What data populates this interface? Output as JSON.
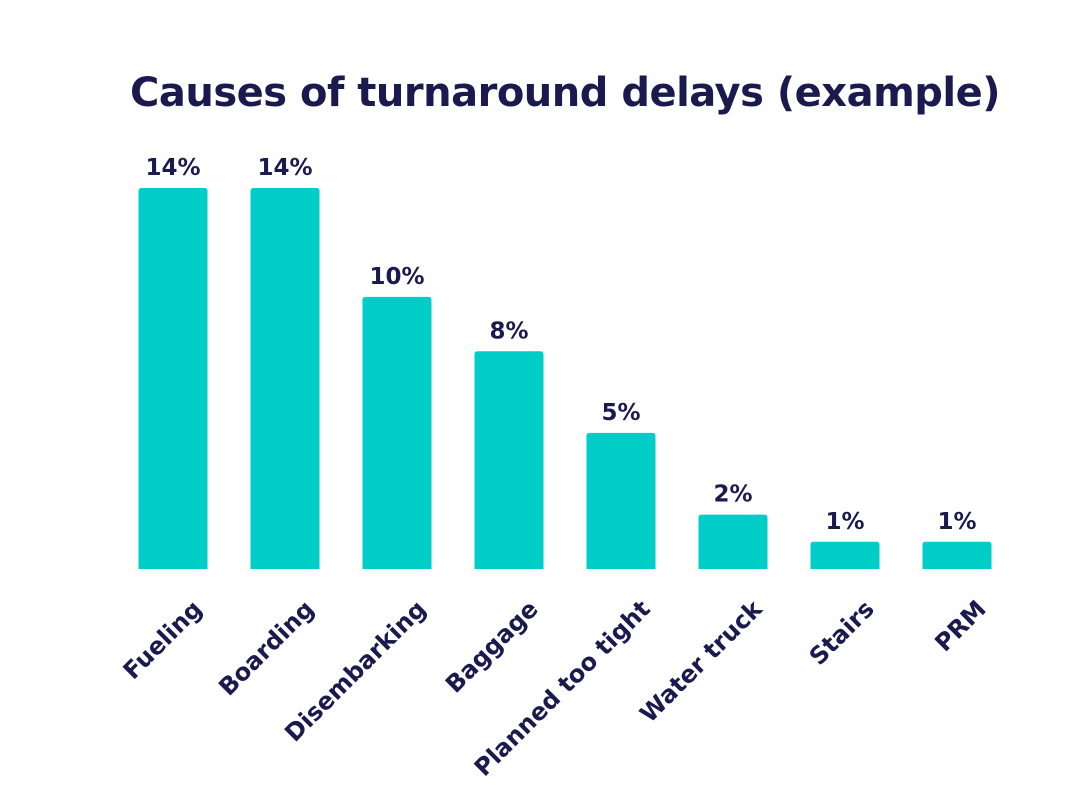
{
  "chart_data": {
    "type": "bar",
    "title": "Causes of turnaround delays (example)",
    "xlabel": "",
    "ylabel": "",
    "categories": [
      "Fueling",
      "Boarding",
      "Disembarking",
      "Baggage",
      "Planned too tight",
      "Water truck",
      "Stairs",
      "PRM"
    ],
    "values": [
      14,
      14,
      10,
      8,
      5,
      2,
      1,
      1
    ],
    "value_labels": [
      "14%",
      "14%",
      "10%",
      "8%",
      "5%",
      "2%",
      "1%",
      "1%"
    ],
    "ylim": [
      0,
      14
    ],
    "grid": false,
    "legend": "none"
  },
  "colors": {
    "bar": "#00cdc8",
    "text": "#1b1a4f",
    "background": "#ffffff"
  }
}
